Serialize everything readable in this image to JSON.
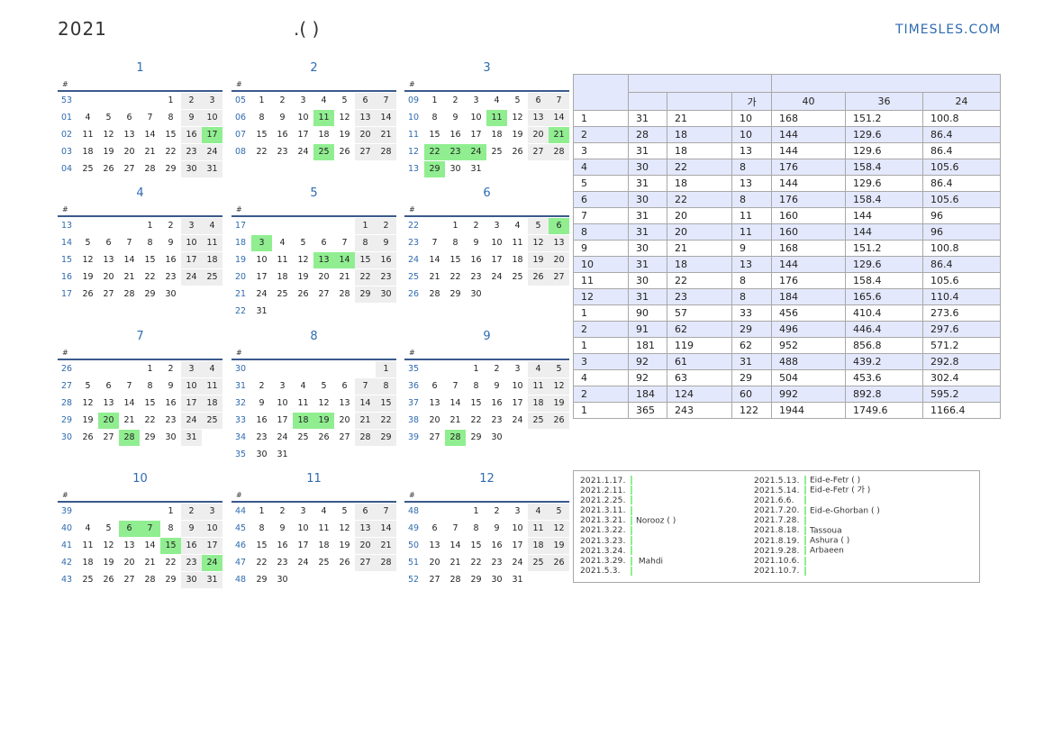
{
  "header": {
    "year": "2021",
    "title_mid": ".(      )",
    "site": "TIMESLES.COM"
  },
  "weekday_header": "#",
  "colors": {
    "accent": "#2f6bb0",
    "holiday": "#90ee90",
    "weekend": "#eeeeee",
    "table_alt": "#e4e8fc"
  },
  "months": [
    {
      "label": "1",
      "weeks": [
        {
          "n": "53",
          "d": [
            "",
            "",
            "",
            "",
            "1",
            "2",
            "3"
          ]
        },
        {
          "n": "01",
          "d": [
            "4",
            "5",
            "6",
            "7",
            "8",
            "9",
            "10"
          ]
        },
        {
          "n": "02",
          "d": [
            "11",
            "12",
            "13",
            "14",
            "15",
            "16",
            "17"
          ]
        },
        {
          "n": "03",
          "d": [
            "18",
            "19",
            "20",
            "21",
            "22",
            "23",
            "24"
          ]
        },
        {
          "n": "04",
          "d": [
            "25",
            "26",
            "27",
            "28",
            "29",
            "30",
            "31"
          ]
        }
      ],
      "holidays": [
        "17"
      ]
    },
    {
      "label": "2",
      "weeks": [
        {
          "n": "05",
          "d": [
            "1",
            "2",
            "3",
            "4",
            "5",
            "6",
            "7"
          ]
        },
        {
          "n": "06",
          "d": [
            "8",
            "9",
            "10",
            "11",
            "12",
            "13",
            "14"
          ]
        },
        {
          "n": "07",
          "d": [
            "15",
            "16",
            "17",
            "18",
            "19",
            "20",
            "21"
          ]
        },
        {
          "n": "08",
          "d": [
            "22",
            "23",
            "24",
            "25",
            "26",
            "27",
            "28"
          ]
        }
      ],
      "holidays": [
        "11",
        "25"
      ]
    },
    {
      "label": "3",
      "weeks": [
        {
          "n": "09",
          "d": [
            "1",
            "2",
            "3",
            "4",
            "5",
            "6",
            "7"
          ]
        },
        {
          "n": "10",
          "d": [
            "8",
            "9",
            "10",
            "11",
            "12",
            "13",
            "14"
          ]
        },
        {
          "n": "11",
          "d": [
            "15",
            "16",
            "17",
            "18",
            "19",
            "20",
            "21"
          ]
        },
        {
          "n": "12",
          "d": [
            "22",
            "23",
            "24",
            "25",
            "26",
            "27",
            "28"
          ]
        },
        {
          "n": "13",
          "d": [
            "29",
            "30",
            "31",
            "",
            "",
            "",
            ""
          ]
        }
      ],
      "holidays": [
        "11",
        "21",
        "22",
        "23",
        "24",
        "29"
      ]
    },
    {
      "label": "4",
      "weeks": [
        {
          "n": "13",
          "d": [
            "",
            "",
            "",
            "1",
            "2",
            "3",
            "4"
          ]
        },
        {
          "n": "14",
          "d": [
            "5",
            "6",
            "7",
            "8",
            "9",
            "10",
            "11"
          ]
        },
        {
          "n": "15",
          "d": [
            "12",
            "13",
            "14",
            "15",
            "16",
            "17",
            "18"
          ]
        },
        {
          "n": "16",
          "d": [
            "19",
            "20",
            "21",
            "22",
            "23",
            "24",
            "25"
          ]
        },
        {
          "n": "17",
          "d": [
            "26",
            "27",
            "28",
            "29",
            "30",
            "",
            ""
          ]
        }
      ],
      "holidays": []
    },
    {
      "label": "5",
      "weeks": [
        {
          "n": "17",
          "d": [
            "",
            "",
            "",
            "",
            "",
            "1",
            "2"
          ]
        },
        {
          "n": "18",
          "d": [
            "3",
            "4",
            "5",
            "6",
            "7",
            "8",
            "9"
          ]
        },
        {
          "n": "19",
          "d": [
            "10",
            "11",
            "12",
            "13",
            "14",
            "15",
            "16"
          ]
        },
        {
          "n": "20",
          "d": [
            "17",
            "18",
            "19",
            "20",
            "21",
            "22",
            "23"
          ]
        },
        {
          "n": "21",
          "d": [
            "24",
            "25",
            "26",
            "27",
            "28",
            "29",
            "30"
          ]
        },
        {
          "n": "22",
          "d": [
            "31",
            "",
            "",
            "",
            "",
            "",
            ""
          ]
        }
      ],
      "holidays": [
        "3",
        "13",
        "14"
      ]
    },
    {
      "label": "6",
      "weeks": [
        {
          "n": "22",
          "d": [
            "",
            "1",
            "2",
            "3",
            "4",
            "5",
            "6"
          ]
        },
        {
          "n": "23",
          "d": [
            "7",
            "8",
            "9",
            "10",
            "11",
            "12",
            "13"
          ]
        },
        {
          "n": "24",
          "d": [
            "14",
            "15",
            "16",
            "17",
            "18",
            "19",
            "20"
          ]
        },
        {
          "n": "25",
          "d": [
            "21",
            "22",
            "23",
            "24",
            "25",
            "26",
            "27"
          ]
        },
        {
          "n": "26",
          "d": [
            "28",
            "29",
            "30",
            "",
            "",
            "",
            ""
          ]
        }
      ],
      "holidays": [
        "6"
      ]
    },
    {
      "label": "7",
      "weeks": [
        {
          "n": "26",
          "d": [
            "",
            "",
            "",
            "1",
            "2",
            "3",
            "4"
          ]
        },
        {
          "n": "27",
          "d": [
            "5",
            "6",
            "7",
            "8",
            "9",
            "10",
            "11"
          ]
        },
        {
          "n": "28",
          "d": [
            "12",
            "13",
            "14",
            "15",
            "16",
            "17",
            "18"
          ]
        },
        {
          "n": "29",
          "d": [
            "19",
            "20",
            "21",
            "22",
            "23",
            "24",
            "25"
          ]
        },
        {
          "n": "30",
          "d": [
            "26",
            "27",
            "28",
            "29",
            "30",
            "31",
            ""
          ]
        }
      ],
      "holidays": [
        "20",
        "28"
      ]
    },
    {
      "label": "8",
      "weeks": [
        {
          "n": "30",
          "d": [
            "",
            "",
            "",
            "",
            "",
            "",
            "1"
          ]
        },
        {
          "n": "31",
          "d": [
            "2",
            "3",
            "4",
            "5",
            "6",
            "7",
            "8"
          ]
        },
        {
          "n": "32",
          "d": [
            "9",
            "10",
            "11",
            "12",
            "13",
            "14",
            "15"
          ]
        },
        {
          "n": "33",
          "d": [
            "16",
            "17",
            "18",
            "19",
            "20",
            "21",
            "22"
          ]
        },
        {
          "n": "34",
          "d": [
            "23",
            "24",
            "25",
            "26",
            "27",
            "28",
            "29"
          ]
        },
        {
          "n": "35",
          "d": [
            "30",
            "31",
            "",
            "",
            "",
            "",
            ""
          ]
        }
      ],
      "holidays": [
        "18",
        "19"
      ]
    },
    {
      "label": "9",
      "weeks": [
        {
          "n": "35",
          "d": [
            "",
            "",
            "1",
            "2",
            "3",
            "4",
            "5"
          ]
        },
        {
          "n": "36",
          "d": [
            "6",
            "7",
            "8",
            "9",
            "10",
            "11",
            "12"
          ]
        },
        {
          "n": "37",
          "d": [
            "13",
            "14",
            "15",
            "16",
            "17",
            "18",
            "19"
          ]
        },
        {
          "n": "38",
          "d": [
            "20",
            "21",
            "22",
            "23",
            "24",
            "25",
            "26"
          ]
        },
        {
          "n": "39",
          "d": [
            "27",
            "28",
            "29",
            "30",
            "",
            "",
            ""
          ]
        }
      ],
      "holidays": [
        "28"
      ]
    },
    {
      "label": "10",
      "weeks": [
        {
          "n": "39",
          "d": [
            "",
            "",
            "",
            "",
            "1",
            "2",
            "3"
          ]
        },
        {
          "n": "40",
          "d": [
            "4",
            "5",
            "6",
            "7",
            "8",
            "9",
            "10"
          ]
        },
        {
          "n": "41",
          "d": [
            "11",
            "12",
            "13",
            "14",
            "15",
            "16",
            "17"
          ]
        },
        {
          "n": "42",
          "d": [
            "18",
            "19",
            "20",
            "21",
            "22",
            "23",
            "24"
          ]
        },
        {
          "n": "43",
          "d": [
            "25",
            "26",
            "27",
            "28",
            "29",
            "30",
            "31"
          ]
        }
      ],
      "holidays": [
        "6",
        "7",
        "15",
        "24"
      ]
    },
    {
      "label": "11",
      "weeks": [
        {
          "n": "44",
          "d": [
            "1",
            "2",
            "3",
            "4",
            "5",
            "6",
            "7"
          ]
        },
        {
          "n": "45",
          "d": [
            "8",
            "9",
            "10",
            "11",
            "12",
            "13",
            "14"
          ]
        },
        {
          "n": "46",
          "d": [
            "15",
            "16",
            "17",
            "18",
            "19",
            "20",
            "21"
          ]
        },
        {
          "n": "47",
          "d": [
            "22",
            "23",
            "24",
            "25",
            "26",
            "27",
            "28"
          ]
        },
        {
          "n": "48",
          "d": [
            "29",
            "30",
            "",
            "",
            "",
            "",
            ""
          ]
        }
      ],
      "holidays": []
    },
    {
      "label": "12",
      "weeks": [
        {
          "n": "48",
          "d": [
            "",
            "",
            "1",
            "2",
            "3",
            "4",
            "5"
          ]
        },
        {
          "n": "49",
          "d": [
            "6",
            "7",
            "8",
            "9",
            "10",
            "11",
            "12"
          ]
        },
        {
          "n": "50",
          "d": [
            "13",
            "14",
            "15",
            "16",
            "17",
            "18",
            "19"
          ]
        },
        {
          "n": "51",
          "d": [
            "20",
            "21",
            "22",
            "23",
            "24",
            "25",
            "26"
          ]
        },
        {
          "n": "52",
          "d": [
            "27",
            "28",
            "29",
            "30",
            "31",
            "",
            ""
          ]
        }
      ],
      "holidays": []
    }
  ],
  "stats_table": {
    "subheader": [
      "",
      "",
      "가",
      "40",
      "36",
      "24"
    ],
    "rows": [
      [
        "1",
        "31",
        "21",
        "10",
        "168",
        "151.2",
        "100.8"
      ],
      [
        "2",
        "28",
        "18",
        "10",
        "144",
        "129.6",
        "86.4"
      ],
      [
        "3",
        "31",
        "18",
        "13",
        "144",
        "129.6",
        "86.4"
      ],
      [
        "4",
        "30",
        "22",
        "8",
        "176",
        "158.4",
        "105.6"
      ],
      [
        "5",
        "31",
        "18",
        "13",
        "144",
        "129.6",
        "86.4"
      ],
      [
        "6",
        "30",
        "22",
        "8",
        "176",
        "158.4",
        "105.6"
      ],
      [
        "7",
        "31",
        "20",
        "11",
        "160",
        "144",
        "96"
      ],
      [
        "8",
        "31",
        "20",
        "11",
        "160",
        "144",
        "96"
      ],
      [
        "9",
        "30",
        "21",
        "9",
        "168",
        "151.2",
        "100.8"
      ],
      [
        "10",
        "31",
        "18",
        "13",
        "144",
        "129.6",
        "86.4"
      ],
      [
        "11",
        "30",
        "22",
        "8",
        "176",
        "158.4",
        "105.6"
      ],
      [
        "12",
        "31",
        "23",
        "8",
        "184",
        "165.6",
        "110.4"
      ],
      [
        "1",
        "90",
        "57",
        "33",
        "456",
        "410.4",
        "273.6"
      ],
      [
        "2",
        "91",
        "62",
        "29",
        "496",
        "446.4",
        "297.6"
      ],
      [
        "1",
        "181",
        "119",
        "62",
        "952",
        "856.8",
        "571.2"
      ],
      [
        "3",
        "92",
        "61",
        "31",
        "488",
        "439.2",
        "292.8"
      ],
      [
        "4",
        "92",
        "63",
        "29",
        "504",
        "453.6",
        "302.4"
      ],
      [
        "2",
        "184",
        "124",
        "60",
        "992",
        "892.8",
        "595.2"
      ],
      [
        "1",
        "365",
        "243",
        "122",
        "1944",
        "1749.6",
        "1166.4"
      ]
    ]
  },
  "events_left": [
    {
      "date": "2021.1.17.",
      "text": ""
    },
    {
      "date": "2021.2.11.",
      "text": ""
    },
    {
      "date": "2021.2.25.",
      "text": ""
    },
    {
      "date": "2021.3.11.",
      "text": ""
    },
    {
      "date": "2021.3.21.",
      "text": "Norooz (                )"
    },
    {
      "date": "2021.3.22.",
      "text": ""
    },
    {
      "date": "2021.3.23.",
      "text": ""
    },
    {
      "date": "2021.3.24.",
      "text": ""
    },
    {
      "date": "2021.3.29.",
      "text": "      Mahdi"
    },
    {
      "date": "2021.5.3.",
      "text": ""
    }
  ],
  "events_right": [
    {
      "date": "2021.5.13.",
      "text": "Eid-e-Fetr (              )"
    },
    {
      "date": "2021.5.14.",
      "text": "Eid-e-Fetr (  가      )"
    },
    {
      "date": "2021.6.6.",
      "text": ""
    },
    {
      "date": "2021.7.20.",
      "text": "Eid-e-Ghorban (              )"
    },
    {
      "date": "2021.7.28.",
      "text": ""
    },
    {
      "date": "2021.8.18.",
      "text": "Tassoua"
    },
    {
      "date": "2021.8.19.",
      "text": "Ashura (        )"
    },
    {
      "date": "2021.9.28.",
      "text": "Arbaeen"
    },
    {
      "date": "2021.10.6.",
      "text": ""
    },
    {
      "date": "2021.10.7.",
      "text": ""
    }
  ]
}
